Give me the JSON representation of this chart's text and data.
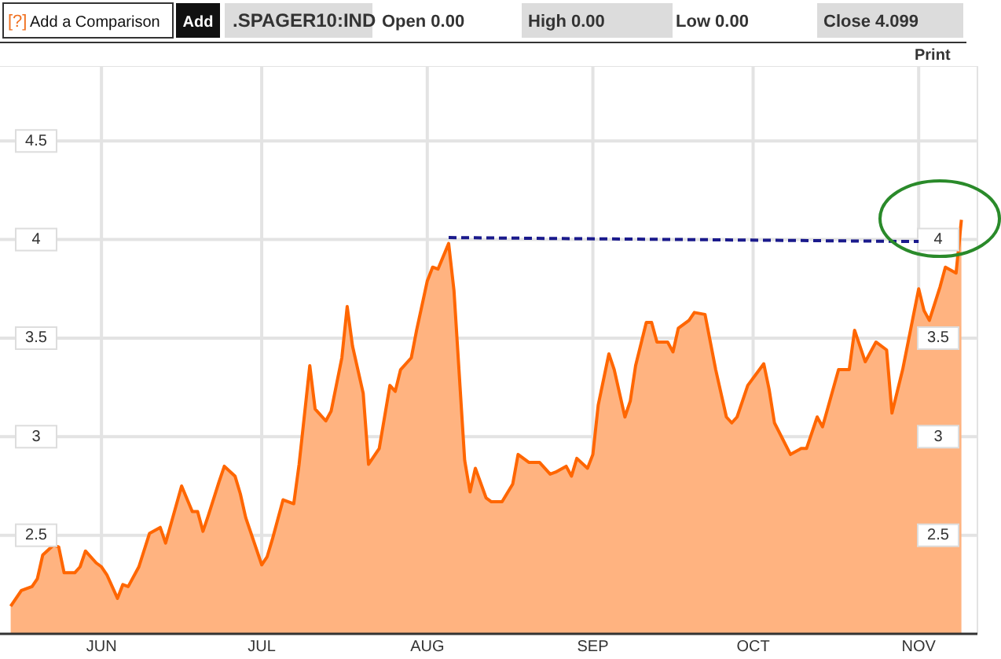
{
  "chart_data": {
    "type": "area",
    "title": ".SPAGER10:IND",
    "annotations": [
      "[?]",
      "Add a Comparison",
      "Add",
      "Open 0.00",
      "High 0.00",
      "Low 0.00",
      "Close 4.099",
      "Print"
    ],
    "x": [
      "--05-15",
      "--05-17",
      "--05-19",
      "--05-20",
      "--05-21",
      "--05-23",
      "--05-24",
      "--05-25",
      "--05-27",
      "--05-28",
      "--05-29",
      "--05-31",
      "--06-01",
      "--06-02",
      "--06-04",
      "--06-05",
      "--06-06",
      "--06-08",
      "--06-10",
      "--06-12",
      "--06-13",
      "--06-16",
      "--06-18",
      "--06-19",
      "--06-20",
      "--06-21",
      "--06-23",
      "--06-24",
      "--06-26",
      "--06-27",
      "--06-28",
      "--06-30",
      "--07-01",
      "--07-02",
      "--07-03",
      "--07-05",
      "--07-07",
      "--07-08",
      "--07-10",
      "--07-11",
      "--07-13",
      "--07-14",
      "--07-16",
      "--07-17",
      "--07-18",
      "--07-20",
      "--07-21",
      "--07-23",
      "--07-25",
      "--07-26",
      "--07-27",
      "--07-29",
      "--07-30",
      "--08-01",
      "--08-02",
      "--08-03",
      "--08-05",
      "--08-06",
      "--08-08",
      "--08-09",
      "--08-10",
      "--08-12",
      "--08-13",
      "--08-15",
      "--08-17",
      "--08-18",
      "--08-20",
      "--08-22",
      "--08-24",
      "--08-25",
      "--08-27",
      "--08-28",
      "--08-29",
      "--08-31",
      "--09-01",
      "--09-02",
      "--09-04",
      "--09-05",
      "--09-07",
      "--09-08",
      "--09-09",
      "--09-11",
      "--09-12",
      "--09-13",
      "--09-15",
      "--09-16",
      "--09-17",
      "--09-19",
      "--09-20",
      "--09-22",
      "--09-24",
      "--09-26",
      "--09-27",
      "--09-28",
      "--09-30",
      "--10-03",
      "--10-04",
      "--10-05",
      "--10-08",
      "--10-10",
      "--10-11",
      "--10-13",
      "--10-14",
      "--10-17",
      "--10-19",
      "--10-20",
      "--10-22",
      "--10-23",
      "--10-24",
      "--10-26",
      "--10-27",
      "--10-29",
      "--11-01",
      "--11-02",
      "--11-03",
      "--11-05",
      "--11-06",
      "--11-08",
      "--11-09"
    ],
    "series": [
      {
        "color": "#ff6600",
        "values": [
          2.14,
          2.22,
          2.24,
          2.28,
          2.4,
          2.45,
          2.44,
          2.31,
          2.31,
          2.34,
          2.42,
          2.36,
          2.34,
          2.3,
          2.18,
          2.25,
          2.24,
          2.34,
          2.51,
          2.54,
          2.46,
          2.75,
          2.62,
          2.62,
          2.52,
          2.6,
          2.77,
          2.85,
          2.8,
          2.71,
          2.59,
          2.43,
          2.35,
          2.39,
          2.48,
          2.68,
          2.66,
          2.86,
          3.36,
          3.14,
          3.08,
          3.13,
          3.4,
          3.66,
          3.46,
          3.22,
          2.86,
          2.94,
          3.26,
          3.23,
          3.34,
          3.4,
          3.54,
          3.79,
          3.86,
          3.85,
          3.98,
          3.74,
          2.88,
          2.72,
          2.84,
          2.69,
          2.67,
          2.67,
          2.76,
          2.91,
          2.87,
          2.87,
          2.81,
          2.82,
          2.85,
          2.8,
          2.89,
          2.84,
          2.91,
          3.16,
          3.42,
          3.34,
          3.1,
          3.18,
          3.36,
          3.58,
          3.58,
          3.48,
          3.48,
          3.43,
          3.55,
          3.59,
          3.63,
          3.62,
          3.34,
          3.1,
          3.07,
          3.1,
          3.26,
          3.37,
          3.24,
          3.07,
          2.91,
          2.94,
          2.94,
          3.1,
          3.05,
          3.34,
          3.34,
          3.54,
          3.38,
          3.43,
          3.48,
          3.44,
          3.12,
          3.34,
          3.75,
          3.64,
          3.59,
          3.76,
          3.86,
          3.83,
          4.1
        ]
      },
      {
        "type": "line",
        "color": "#1a1a8c",
        "line_style": "dashed",
        "x": [
          "--08-05",
          "--11-01"
        ],
        "values": [
          4.01,
          3.99
        ]
      }
    ],
    "xlim": [
      "--05-13",
      "--11-12"
    ],
    "xticks": [
      {
        "value": "--06-01",
        "label": "JUN"
      },
      {
        "value": "--07-01",
        "label": "JUL"
      },
      {
        "value": "--08-01",
        "label": "AUG"
      },
      {
        "value": "--09-01",
        "label": "SEP"
      },
      {
        "value": "--10-01",
        "label": "OCT"
      },
      {
        "value": "--11-01",
        "label": "NOV"
      }
    ],
    "ylim": [
      2,
      4.88
    ],
    "yticks": [
      2.5,
      3,
      3.5,
      4,
      4.5
    ],
    "y2lim": [
      2,
      4.88
    ],
    "y2ticks": [
      2.5,
      3,
      3.5,
      4
    ],
    "grid": true,
    "marker": "none"
  }
}
